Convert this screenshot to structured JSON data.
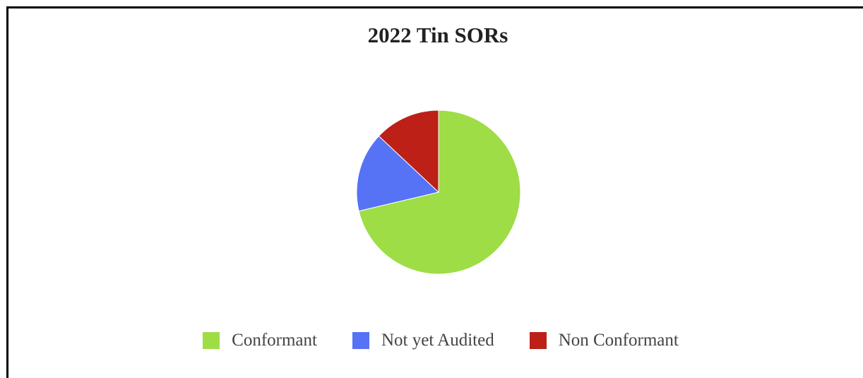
{
  "chart_data": {
    "type": "pie",
    "title": "2022 Tin SORs",
    "legend_position": "bottom",
    "slices": [
      {
        "label": "Conformant",
        "value": 71.3,
        "color": "#9edd46"
      },
      {
        "label": "Not yet Audited",
        "value": 15.7,
        "color": "#5672f5"
      },
      {
        "label": "Non Conformant",
        "value": 13.0,
        "color": "#bc2017"
      }
    ]
  }
}
